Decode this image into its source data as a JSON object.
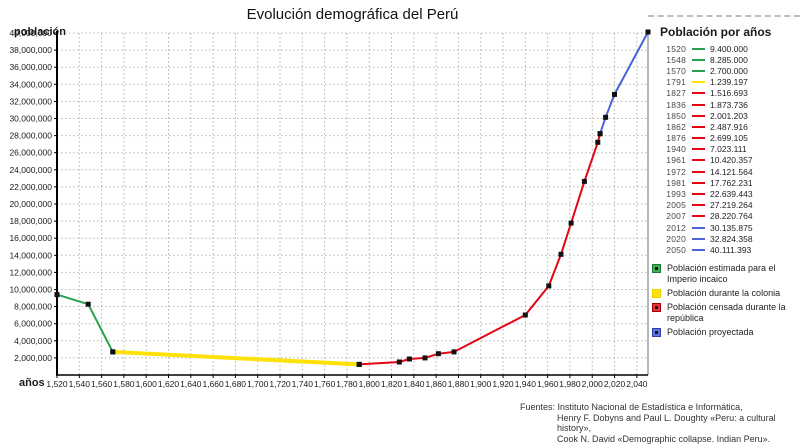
{
  "title": "Evolución demográfica del Perú",
  "y_axis_label": "población",
  "x_axis_label": "años",
  "chart_data": {
    "type": "line",
    "title": "Evolución demográfica del Perú",
    "xlabel": "años",
    "ylabel": "población",
    "xlim": [
      1520,
      2050
    ],
    "ylim": [
      0,
      40000000
    ],
    "x_ticks_start": 1520,
    "x_ticks_end": 2040,
    "x_tick_step": 20,
    "y_tick_step": 2000000,
    "grid": true,
    "legend_position": "right",
    "marker": {
      "shape": "square",
      "color": "#111111",
      "size": 5
    },
    "series": [
      {
        "name": "Población estimada para el Imperio incaico",
        "color": "#2aa14c",
        "line_width": 2,
        "points": [
          [
            1520,
            9400000
          ],
          [
            1548,
            8285000
          ],
          [
            1570,
            2700000
          ]
        ]
      },
      {
        "name": "Población durante la colonia",
        "color": "#ffe10a",
        "line_width": 4,
        "points": [
          [
            1570,
            2700000
          ],
          [
            1791,
            1239197
          ]
        ]
      },
      {
        "name": "Población censada durante la república",
        "color": "#e30613",
        "line_width": 2,
        "points": [
          [
            1791,
            1239197
          ],
          [
            1827,
            1516693
          ],
          [
            1836,
            1873736
          ],
          [
            1850,
            2001203
          ],
          [
            1862,
            2487916
          ],
          [
            1876,
            2699105
          ],
          [
            1940,
            7023111
          ],
          [
            1961,
            10420357
          ],
          [
            1972,
            14121564
          ],
          [
            1981,
            17762231
          ],
          [
            1993,
            22639443
          ],
          [
            2005,
            27219264
          ],
          [
            2007,
            28220764
          ]
        ]
      },
      {
        "name": "Población proyectada",
        "color": "#4a63d8",
        "line_width": 2,
        "points": [
          [
            2007,
            28220764
          ],
          [
            2012,
            30135875
          ],
          [
            2020,
            32824358
          ],
          [
            2050,
            40111393
          ]
        ]
      }
    ]
  },
  "table": {
    "title": "Población por años",
    "rows": [
      {
        "year": "1520",
        "value": "9.400.000",
        "series": 0
      },
      {
        "year": "1548",
        "value": "8.285.000",
        "series": 0
      },
      {
        "year": "1570",
        "value": "2.700.000",
        "series": 0
      },
      {
        "year": "1791",
        "value": "1.239.197",
        "series": 1
      },
      {
        "year": "1827",
        "value": "1.516.693",
        "series": 2
      },
      {
        "year": "1836",
        "value": "1.873.736",
        "series": 2
      },
      {
        "year": "1850",
        "value": "2.001.203",
        "series": 2
      },
      {
        "year": "1862",
        "value": "2.487.916",
        "series": 2
      },
      {
        "year": "1876",
        "value": "2.699.105",
        "series": 2
      },
      {
        "year": "1940",
        "value": "7.023.111",
        "series": 2
      },
      {
        "year": "1961",
        "value": "10.420.357",
        "series": 2
      },
      {
        "year": "1972",
        "value": "14.121.564",
        "series": 2
      },
      {
        "year": "1981",
        "value": "17.762.231",
        "series": 2
      },
      {
        "year": "1993",
        "value": "22.639.443",
        "series": 2
      },
      {
        "year": "2005",
        "value": "27.219.264",
        "series": 2
      },
      {
        "year": "2007",
        "value": "28.220.764",
        "series": 2
      },
      {
        "year": "2012",
        "value": "30.135.875",
        "series": 3
      },
      {
        "year": "2020",
        "value": "32.824.358",
        "series": 3
      },
      {
        "year": "2050",
        "value": "40.111.393",
        "series": 3
      }
    ]
  },
  "legend": {
    "items": [
      {
        "label": "Población estimada para el Imperio incaico",
        "fill": "#3fae57",
        "border": "#1d7a35",
        "dot": true
      },
      {
        "label": "Población durante la colonia",
        "fill": "#ffe10a",
        "border": "#f0d400",
        "dot": false
      },
      {
        "label": "Población censada durante la república",
        "fill": "#e8323c",
        "border": "#9f0008",
        "dot": true
      },
      {
        "label": "Población proyectada",
        "fill": "#5b74e0",
        "border": "#2c3fa8",
        "dot": true
      }
    ]
  },
  "sources": {
    "prefix": "Fuentes:",
    "lines": [
      "Instituto Nacional de Estadística e Informática,",
      "Henry F. Dobyns and Paul L. Doughty «Peru: a cultural history»,",
      "Cook N. David «Demographic collapse. Indian Peru»."
    ]
  }
}
